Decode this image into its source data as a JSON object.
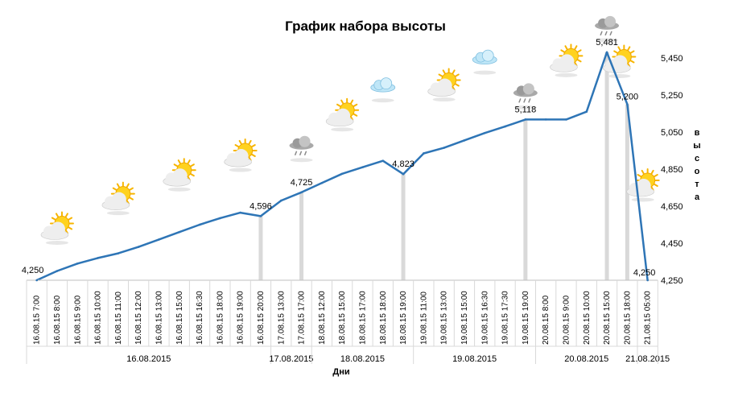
{
  "chart_data": {
    "type": "line",
    "title": "График набора высоты",
    "xlabel": "Дни",
    "ylabel": "высота",
    "ylim": [
      4250,
      5450
    ],
    "yticks": [
      "4,250",
      "4,450",
      "4,650",
      "4,850",
      "5,050",
      "5,250",
      "5,450"
    ],
    "ytick_values": [
      4250,
      4450,
      4650,
      4850,
      5050,
      5250,
      5450
    ],
    "grid": false,
    "line_color": "#2e75b6",
    "drop_line_color": "#d9d9d9",
    "categories": [
      "16.08.15 7:00",
      "16.08.15 8:00",
      "16.08.15 9:00",
      "16.08.15 10:00",
      "16.08.15 11:00",
      "16.08.15 12:00",
      "16.08.15 13:00",
      "16.08.15 15:00",
      "16.08.15 16:30",
      "16.08.15 18:00",
      "16.08.15 19:00",
      "16.08.15 20:00",
      "17.08.15 13:00",
      "17.08.15 17:00",
      "18.08.15 12:00",
      "18.08.15 15:00",
      "18.08.15 17:00",
      "18.08.15 18:00",
      "18.08.15 19:00",
      "19.08.15 11:00",
      "19.08.15 13:00",
      "19.08.15 15:00",
      "19.08.15 16:30",
      "19.08.15 17:30",
      "19.08.15 19:00",
      "20.08.15 8:00",
      "20.08.15 9:00",
      "20.08.15 10:00",
      "20.08.15 15:00",
      "20.08.15 18:00",
      "21.08.15 05:00"
    ],
    "values": [
      4250,
      4300,
      4340,
      4370,
      4395,
      4430,
      4470,
      4510,
      4550,
      4585,
      4615,
      4596,
      4680,
      4725,
      4775,
      4825,
      4860,
      4895,
      4823,
      4935,
      4965,
      5005,
      5045,
      5080,
      5118,
      5118,
      5118,
      5160,
      5481,
      5200,
      4250
    ],
    "series": [
      {
        "name": "",
        "values_ref": "values"
      }
    ],
    "data_labels": [
      {
        "index": 0,
        "text": "4,250"
      },
      {
        "index": 11,
        "text": "4,596"
      },
      {
        "index": 13,
        "text": "4,725"
      },
      {
        "index": 18,
        "text": "4,823"
      },
      {
        "index": 24,
        "text": "5,118"
      },
      {
        "index": 28,
        "text": "5,481"
      },
      {
        "index": 29,
        "text": "5,200"
      },
      {
        "index": 30,
        "text": "4,250"
      }
    ],
    "drop_lines": [
      11,
      13,
      18,
      24,
      28,
      29
    ],
    "date_groups": [
      {
        "label": "16.08.2015",
        "start": 0,
        "end": 11
      },
      {
        "label": "17.08.2015",
        "start": 12,
        "end": 13
      },
      {
        "label": "18.08.2015",
        "start": 14,
        "end": 18
      },
      {
        "label": "19.08.2015",
        "start": 19,
        "end": 24
      },
      {
        "label": "20.08.2015",
        "start": 25,
        "end": 29
      },
      {
        "label": "21.08.2015",
        "start": 30,
        "end": 30
      }
    ],
    "weather_icons": [
      {
        "index": 1,
        "icon": "sun-cloud-icon"
      },
      {
        "index": 4,
        "icon": "sun-cloud-icon"
      },
      {
        "index": 7,
        "icon": "sun-cloud-icon"
      },
      {
        "index": 10,
        "icon": "sun-cloud-icon"
      },
      {
        "index": 13,
        "icon": "rain-cloud-icon"
      },
      {
        "index": 15,
        "icon": "sun-cloud-icon"
      },
      {
        "index": 17,
        "icon": "cloud-icon"
      },
      {
        "index": 20,
        "icon": "sun-cloud-icon"
      },
      {
        "index": 22,
        "icon": "cloud-icon"
      },
      {
        "index": 24,
        "icon": "rain-cloud-icon"
      },
      {
        "index": 26,
        "icon": "sun-cloud-icon"
      },
      {
        "index": 28,
        "icon": "rain-cloud-icon"
      },
      {
        "index": 29,
        "icon": "sun-cloud-icon"
      },
      {
        "index": 30,
        "icon": "sun-cloud-icon"
      }
    ]
  }
}
